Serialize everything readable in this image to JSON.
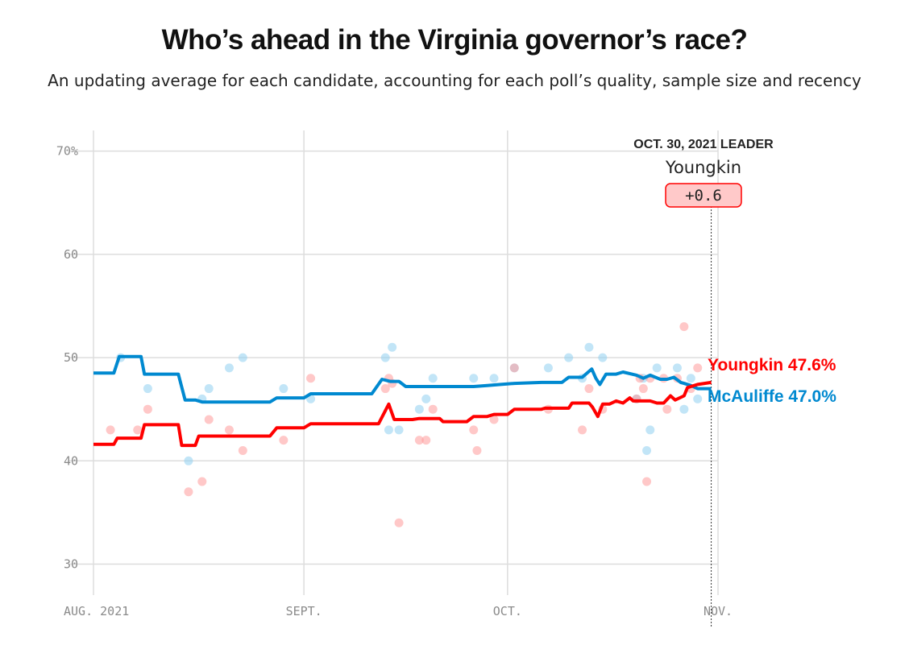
{
  "title": "Who’s ahead in the Virginia governor’s race?",
  "subtitle": "An updating average for each candidate, accounting for each poll’s quality, sample size and recency",
  "colors": {
    "youngkin": "#ff0000",
    "mcauliffe": "#0089d0",
    "grid": "#dddddd",
    "axis_text": "#8a8a8a"
  },
  "leader_box": {
    "heading": "OCT. 30, 2021 LEADER",
    "name": "Youngkin",
    "margin": "+0.6",
    "date": 91
  },
  "chart_data": {
    "type": "line",
    "title": "Who’s ahead in the Virginia governor’s race?",
    "subtitle": "An updating average for each candidate, accounting for each poll’s quality, sample size and recency",
    "x_axis": {
      "start": "Aug. 1, 2021",
      "unit": "day",
      "range": [
        0,
        91
      ],
      "ticks": [
        0,
        31,
        61,
        92
      ],
      "tick_labels": [
        "AUG. 2021",
        "SEPT.",
        "OCT.",
        "NOV."
      ]
    },
    "y_axis": {
      "range": [
        27,
        72
      ],
      "ticks": [
        30,
        40,
        50,
        60,
        70
      ],
      "tick_labels": [
        "30",
        "40",
        "50",
        "60",
        "70%"
      ],
      "grid": true
    },
    "series": [
      {
        "name": "Youngkin",
        "end_label": "Youngkin 47.6%",
        "color": "#ff0000",
        "values": [
          [
            0,
            41.6
          ],
          [
            3,
            41.6
          ],
          [
            3.5,
            42.2
          ],
          [
            7,
            42.2
          ],
          [
            7.5,
            43.5
          ],
          [
            12.5,
            43.5
          ],
          [
            13,
            41.5
          ],
          [
            15,
            41.5
          ],
          [
            15.5,
            42.4
          ],
          [
            26,
            42.4
          ],
          [
            27,
            43.2
          ],
          [
            31,
            43.2
          ],
          [
            32,
            43.6
          ],
          [
            42,
            43.6
          ],
          [
            43.5,
            45.5
          ],
          [
            44.3,
            44.0
          ],
          [
            47,
            44.0
          ],
          [
            48,
            44.1
          ],
          [
            51,
            44.1
          ],
          [
            51.5,
            43.8
          ],
          [
            55,
            43.8
          ],
          [
            56,
            44.3
          ],
          [
            58,
            44.3
          ],
          [
            59,
            44.5
          ],
          [
            61,
            44.5
          ],
          [
            62,
            45.0
          ],
          [
            66,
            45.0
          ],
          [
            66.5,
            45.1
          ],
          [
            70,
            45.1
          ],
          [
            70.5,
            45.6
          ],
          [
            73,
            45.6
          ],
          [
            73.5,
            45.2
          ],
          [
            74.3,
            44.3
          ],
          [
            75,
            45.5
          ],
          [
            76,
            45.5
          ],
          [
            77,
            45.8
          ],
          [
            78,
            45.6
          ],
          [
            79,
            46.1
          ],
          [
            79.5,
            45.8
          ],
          [
            82,
            45.8
          ],
          [
            83,
            45.6
          ],
          [
            84,
            45.6
          ],
          [
            85,
            46.3
          ],
          [
            85.7,
            45.9
          ],
          [
            87,
            46.3
          ],
          [
            87.5,
            47.1
          ],
          [
            89,
            47.4
          ],
          [
            90,
            47.5
          ],
          [
            91,
            47.6
          ]
        ]
      },
      {
        "name": "McAuliffe",
        "end_label": "McAuliffe 47.0%",
        "color": "#0089d0",
        "values": [
          [
            0,
            48.5
          ],
          [
            3,
            48.5
          ],
          [
            3.8,
            50.1
          ],
          [
            7,
            50.1
          ],
          [
            7.5,
            48.4
          ],
          [
            12.5,
            48.4
          ],
          [
            13.5,
            45.9
          ],
          [
            15,
            45.9
          ],
          [
            16,
            45.7
          ],
          [
            26,
            45.7
          ],
          [
            27,
            46.1
          ],
          [
            31,
            46.1
          ],
          [
            32,
            46.5
          ],
          [
            41,
            46.5
          ],
          [
            42.5,
            47.9
          ],
          [
            43.7,
            47.7
          ],
          [
            45,
            47.7
          ],
          [
            46,
            47.2
          ],
          [
            51,
            47.2
          ],
          [
            52,
            47.2
          ],
          [
            56,
            47.2
          ],
          [
            58,
            47.3
          ],
          [
            60,
            47.4
          ],
          [
            62,
            47.5
          ],
          [
            66,
            47.6
          ],
          [
            69,
            47.6
          ],
          [
            70,
            48.1
          ],
          [
            72,
            48.1
          ],
          [
            73.4,
            48.9
          ],
          [
            74,
            48.0
          ],
          [
            74.6,
            47.4
          ],
          [
            75.5,
            48.4
          ],
          [
            77,
            48.4
          ],
          [
            78,
            48.6
          ],
          [
            80,
            48.3
          ],
          [
            81,
            48.0
          ],
          [
            82,
            48.3
          ],
          [
            83.5,
            47.9
          ],
          [
            84.5,
            47.9
          ],
          [
            85.5,
            48.1
          ],
          [
            86.5,
            47.6
          ],
          [
            87,
            47.5
          ],
          [
            88,
            47.3
          ],
          [
            89,
            47.0
          ],
          [
            90,
            47.0
          ],
          [
            91,
            47.0
          ]
        ]
      }
    ],
    "polls": {
      "youngkin": [
        [
          2.5,
          43
        ],
        [
          6.5,
          43
        ],
        [
          8,
          45
        ],
        [
          14,
          37
        ],
        [
          16,
          38
        ],
        [
          17,
          44
        ],
        [
          20,
          43
        ],
        [
          22,
          41
        ],
        [
          28,
          42
        ],
        [
          32,
          48
        ],
        [
          43,
          47
        ],
        [
          43.5,
          48
        ],
        [
          44,
          47.5
        ],
        [
          45,
          34
        ],
        [
          48,
          42
        ],
        [
          49,
          42
        ],
        [
          50,
          45
        ],
        [
          56,
          43
        ],
        [
          56.5,
          41
        ],
        [
          59,
          44
        ],
        [
          62,
          49
        ],
        [
          67,
          45
        ],
        [
          72,
          43
        ],
        [
          73,
          47
        ],
        [
          75,
          45
        ],
        [
          80,
          46
        ],
        [
          80.5,
          48
        ],
        [
          81,
          47
        ],
        [
          81.5,
          38
        ],
        [
          82,
          48
        ],
        [
          84,
          48
        ],
        [
          84.5,
          45
        ],
        [
          86,
          48
        ],
        [
          87,
          53
        ],
        [
          88,
          47
        ],
        [
          89,
          49
        ]
      ],
      "mcauliffe": [
        [
          4,
          50
        ],
        [
          8,
          47
        ],
        [
          14,
          40
        ],
        [
          16,
          46
        ],
        [
          17,
          47
        ],
        [
          20,
          49
        ],
        [
          22,
          50
        ],
        [
          28,
          47
        ],
        [
          32,
          46
        ],
        [
          43,
          50
        ],
        [
          43.5,
          43
        ],
        [
          44,
          51
        ],
        [
          45,
          43
        ],
        [
          48,
          45
        ],
        [
          49,
          46
        ],
        [
          50,
          48
        ],
        [
          56,
          48
        ],
        [
          59,
          48
        ],
        [
          62,
          49
        ],
        [
          67,
          49
        ],
        [
          70,
          50
        ],
        [
          72,
          48
        ],
        [
          73,
          51
        ],
        [
          75,
          50
        ],
        [
          80,
          46
        ],
        [
          81,
          48
        ],
        [
          81.5,
          41
        ],
        [
          82,
          43
        ],
        [
          83,
          49
        ],
        [
          86,
          49
        ],
        [
          87,
          45
        ],
        [
          88,
          48
        ],
        [
          89,
          46
        ]
      ]
    }
  }
}
